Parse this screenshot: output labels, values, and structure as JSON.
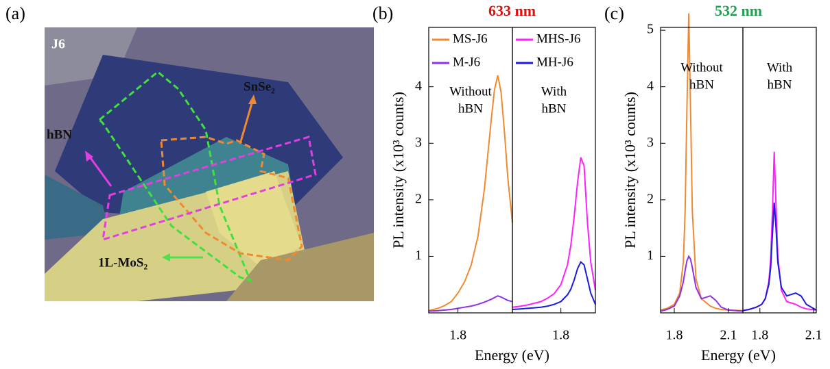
{
  "image": {
    "panel_label": "(a)",
    "labels": [
      "J6",
      "hBN",
      "SnSe₂",
      "1L-MoS₂"
    ]
  },
  "chart_data": [
    {
      "type": "line",
      "panel_label": "(b)",
      "title": "633 nm",
      "title_color": "#e01010",
      "y_label": "PL intensity (x10³ counts)",
      "x_label": "Energy (eV)",
      "annotation": [
        "Without",
        "hBN"
      ],
      "x": [
        1.756,
        1.77,
        1.78,
        1.79,
        1.8,
        1.81,
        1.82,
        1.83,
        1.84,
        1.85,
        1.855,
        1.86,
        1.865,
        1.87,
        1.875,
        1.882
      ],
      "xlim": [
        1.756,
        1.882
      ],
      "xticks": [
        1.8
      ],
      "ylim": [
        0,
        5.05
      ],
      "yticks": [
        1,
        2,
        3,
        4
      ],
      "series": [
        {
          "name": "MS-J6",
          "color": "#f08a30",
          "values": [
            0.04,
            0.08,
            0.13,
            0.2,
            0.35,
            0.55,
            0.85,
            1.35,
            2.2,
            3.4,
            3.95,
            4.2,
            3.9,
            3.2,
            2.4,
            1.6
          ]
        },
        {
          "name": "M-J6",
          "color": "#9030e8",
          "values": [
            0.03,
            0.04,
            0.05,
            0.06,
            0.08,
            0.1,
            0.12,
            0.15,
            0.19,
            0.24,
            0.27,
            0.3,
            0.28,
            0.25,
            0.22,
            0.2
          ]
        }
      ]
    },
    {
      "type": "line",
      "annotation": [
        "With",
        "hBN"
      ],
      "x": [
        1.727,
        1.74,
        1.75,
        1.76,
        1.77,
        1.78,
        1.79,
        1.8,
        1.81,
        1.815,
        1.82,
        1.825,
        1.83,
        1.835,
        1.84,
        1.845,
        1.852
      ],
      "xlim": [
        1.727,
        1.852
      ],
      "xticks": [
        1.8
      ],
      "ylim": [
        0,
        5.05
      ],
      "series": [
        {
          "name": "MHS-J6",
          "color": "#ff20ff",
          "values": [
            0.1,
            0.12,
            0.14,
            0.17,
            0.2,
            0.26,
            0.34,
            0.5,
            0.85,
            1.2,
            1.7,
            2.3,
            2.75,
            2.6,
            1.6,
            0.9,
            0.4
          ]
        },
        {
          "name": "MH-J6",
          "color": "#1a1ae0",
          "values": [
            0.06,
            0.07,
            0.08,
            0.09,
            0.1,
            0.12,
            0.15,
            0.2,
            0.32,
            0.42,
            0.58,
            0.78,
            0.9,
            0.85,
            0.6,
            0.35,
            0.15
          ]
        }
      ]
    },
    {
      "type": "line",
      "panel_label": "(c)",
      "title": "532 nm",
      "title_color": "#20a050",
      "y_label": "PL intensity (x10³ counts)",
      "x_label": "Energy (eV)",
      "annotation": [
        "Without",
        "hBN"
      ],
      "x": [
        1.724,
        1.76,
        1.8,
        1.83,
        1.85,
        1.86,
        1.87,
        1.88,
        1.89,
        1.9,
        1.92,
        1.95,
        2.0,
        2.03,
        2.06,
        2.1,
        2.18
      ],
      "xlim": [
        1.724,
        2.18
      ],
      "xticks": [
        1.8,
        2.1
      ],
      "ylim": [
        0,
        5.05
      ],
      "yticks": [
        1,
        2,
        3,
        4,
        5
      ],
      "series": [
        {
          "color": "#f08a30",
          "values": [
            0.05,
            0.08,
            0.15,
            0.35,
            0.9,
            1.8,
            3.6,
            5.3,
            3.6,
            1.8,
            0.6,
            0.25,
            0.12,
            0.08,
            0.06,
            0.05,
            0.04
          ]
        },
        {
          "color": "#9030e8",
          "values": [
            0.03,
            0.06,
            0.12,
            0.3,
            0.55,
            0.75,
            0.92,
            1.0,
            0.95,
            0.8,
            0.45,
            0.25,
            0.3,
            0.22,
            0.1,
            0.05,
            0.03
          ]
        }
      ]
    },
    {
      "type": "line",
      "annotation": [
        "With",
        "hBN"
      ],
      "x": [
        1.705,
        1.74,
        1.78,
        1.81,
        1.83,
        1.85,
        1.86,
        1.87,
        1.88,
        1.89,
        1.9,
        1.92,
        1.95,
        2.0,
        2.03,
        2.06,
        2.115
      ],
      "xlim": [
        1.705,
        2.115
      ],
      "xticks": [
        1.8,
        2.1
      ],
      "ylim": [
        0,
        5.05
      ],
      "series": [
        {
          "color": "#ff20ff",
          "values": [
            0.04,
            0.06,
            0.1,
            0.15,
            0.25,
            0.55,
            0.95,
            1.8,
            2.85,
            1.9,
            1.0,
            0.4,
            0.2,
            0.15,
            0.1,
            0.07,
            0.05
          ]
        },
        {
          "color": "#1a1ae0",
          "values": [
            0.04,
            0.06,
            0.1,
            0.15,
            0.25,
            0.5,
            0.8,
            1.4,
            1.95,
            1.5,
            0.9,
            0.45,
            0.3,
            0.35,
            0.3,
            0.15,
            0.05
          ]
        }
      ]
    }
  ]
}
